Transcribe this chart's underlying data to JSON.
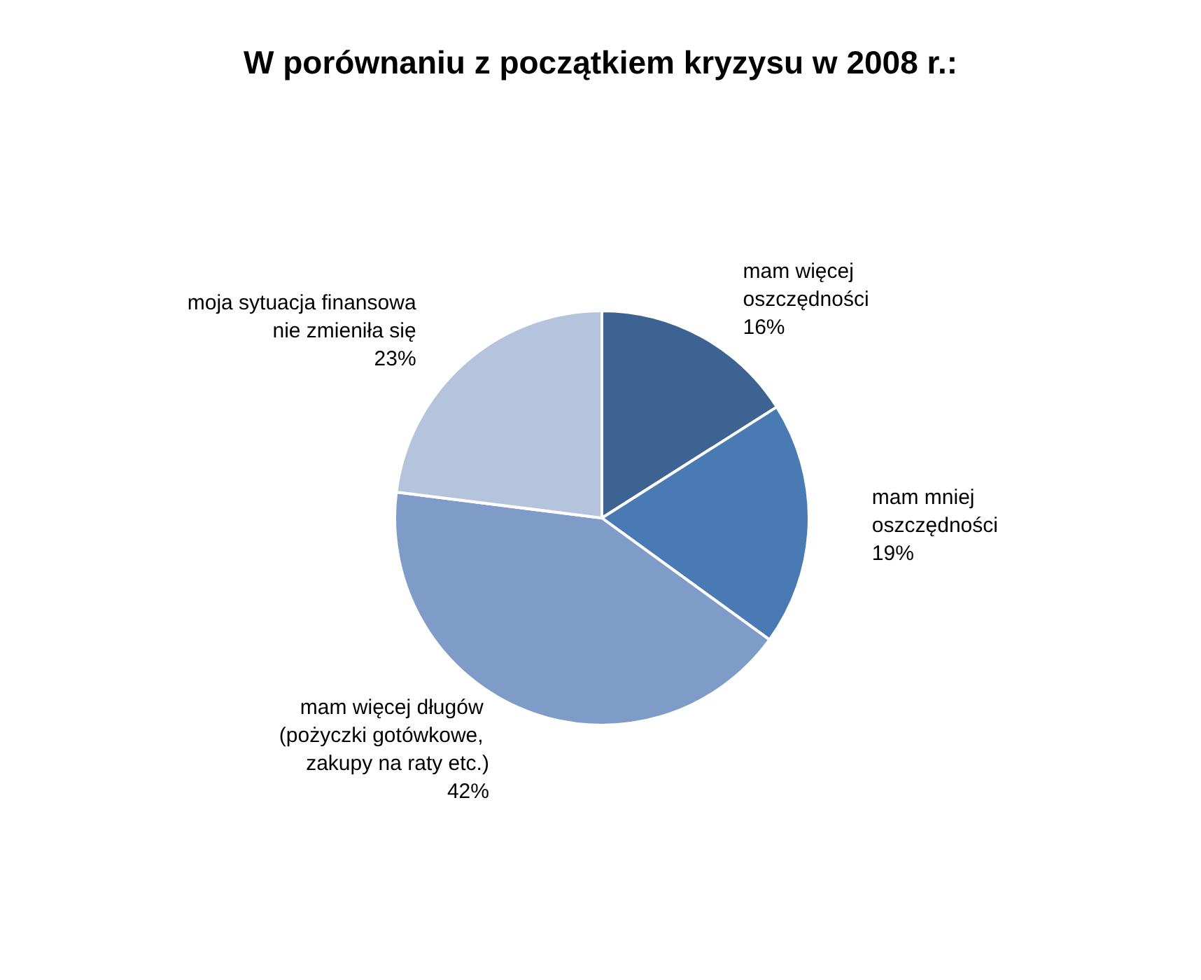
{
  "chart_data": {
    "type": "pie",
    "title": "W porównaniu z początkiem kryzysu w 2008 r.:",
    "categories": [
      "mam więcej oszczędności",
      "mam mniej oszczędności",
      "mam więcej długów (pożyczki gotówkowe, zakupy na raty etc.)",
      "moja sytuacja finansowa nie zmieniła się"
    ],
    "values": [
      16,
      19,
      42,
      23
    ],
    "value_labels": [
      "16%",
      "19%",
      "42%",
      "23%"
    ],
    "colors": [
      "#3d6392",
      "#4a7ab4",
      "#7f9bc8",
      "#b5c3dc"
    ],
    "legend": false
  }
}
